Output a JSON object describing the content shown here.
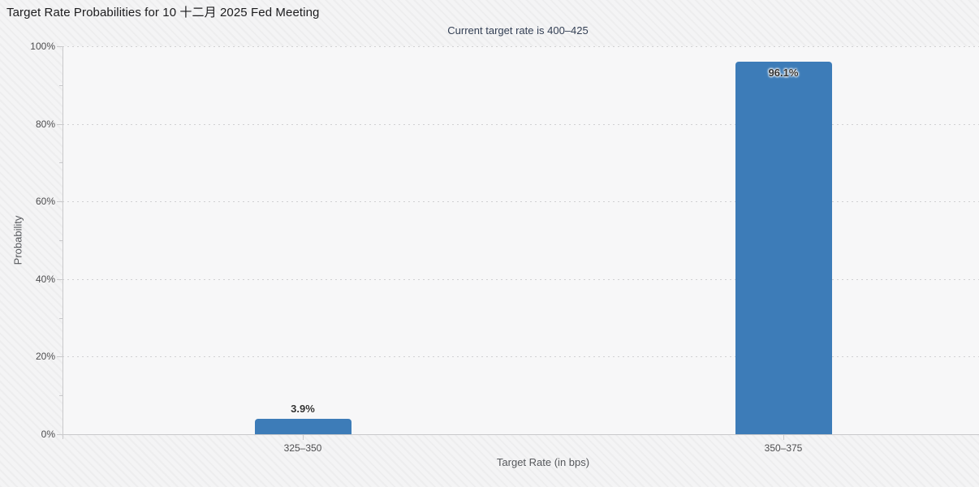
{
  "chart_data": {
    "type": "bar",
    "title": "Target Rate Probabilities for 10 十二月 2025 Fed Meeting",
    "subtitle": "Current target rate is 400–425",
    "categories": [
      "325–350",
      "350–375"
    ],
    "values": [
      3.9,
      96.1
    ],
    "value_labels": [
      "3.9%",
      "96.1%"
    ],
    "xlabel": "Target Rate (in bps)",
    "ylabel": "Probability",
    "ylim": [
      0,
      100
    ],
    "yticks": [
      0,
      20,
      40,
      60,
      80,
      100
    ],
    "ytick_labels": [
      "0%",
      "20%",
      "40%",
      "60%",
      "80%",
      "100%"
    ],
    "minor_yticks": [
      10,
      30,
      50,
      70,
      90
    ],
    "grid": "horizontal dotted, on",
    "legend": "none",
    "bar_color": "#3d7cb8",
    "label_color": "#333333",
    "subtitle_color": "#333f54"
  }
}
